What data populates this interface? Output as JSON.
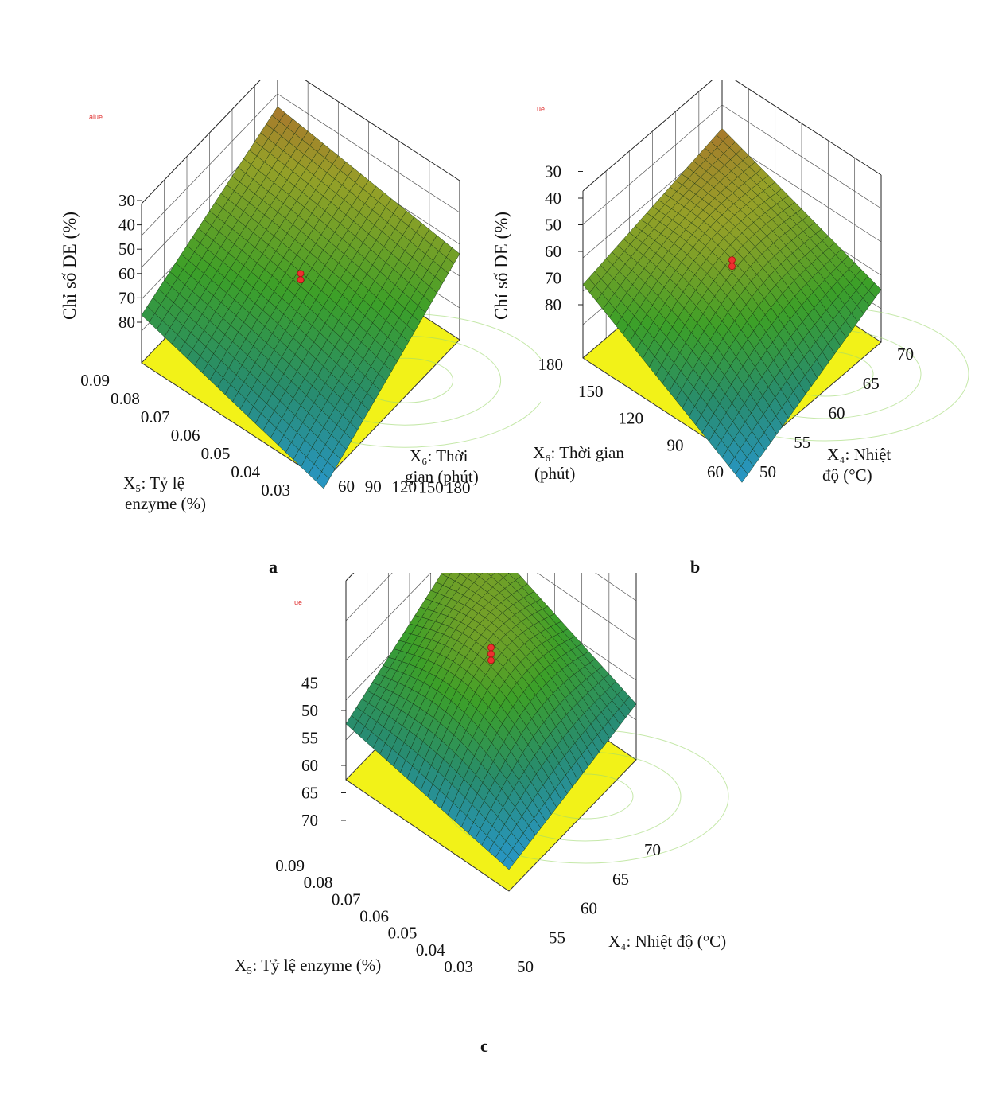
{
  "chart_data": [
    {
      "type": "surface",
      "panel_label": "a",
      "corner_text": "alue",
      "zlabel": "Chỉ số DE (%)",
      "zticks": [
        "80",
        "70",
        "60",
        "50",
        "40",
        "30"
      ],
      "xlabel_line1": "X₅: Tỷ lệ",
      "xlabel_line2": "enzyme (%)",
      "xticks": [
        "0.09",
        "0.08",
        "0.07",
        "0.06",
        "0.05",
        "0.04",
        "0.03"
      ],
      "ylabel_line1": "X₆: Thời",
      "ylabel_line2": "gian (phút)",
      "yticks": [
        "180",
        "150",
        "120",
        "90",
        "60"
      ],
      "surface_corners": {
        "front": 27,
        "left": 50,
        "back": 78,
        "right": 66
      },
      "design_points_z": [
        64,
        65
      ]
    },
    {
      "type": "surface",
      "panel_label": "b",
      "corner_text": "ue",
      "zlabel": "Chỉ số DE (%)",
      "zticks": [
        "80",
        "70",
        "60",
        "50",
        "40",
        "30"
      ],
      "xlabel_line1": "X₆: Thời gian",
      "xlabel_line2": "(phút)",
      "xticks": [
        "180",
        "150",
        "120",
        "90",
        "60"
      ],
      "ylabel_line1": "X₄: Nhiệt",
      "ylabel_line2": "độ (°C)",
      "yticks": [
        "70",
        "65",
        "60",
        "55",
        "50"
      ],
      "surface_corners": {
        "front": 22,
        "left": 58,
        "back": 72,
        "right": 50
      },
      "design_points_z": [
        64,
        65
      ]
    },
    {
      "type": "surface",
      "panel_label": "c",
      "corner_text": "ue",
      "zlabel": "",
      "zticks": [
        "70",
        "65",
        "60",
        "55",
        "50",
        "45"
      ],
      "xlabel_line1": "X₅: Tỷ lệ enzyme (%)",
      "xlabel_line2": "",
      "xticks": [
        "0.09",
        "0.08",
        "0.07",
        "0.06",
        "0.05",
        "0.04",
        "0.03"
      ],
      "ylabel_line1": "X₄: Nhiệt độ (°C)",
      "ylabel_line2": "",
      "yticks": [
        "70",
        "65",
        "60",
        "55",
        "50"
      ],
      "surface_corners": {
        "front": 45,
        "left": 53,
        "back": 69,
        "right": 53
      },
      "design_points_z": [
        64,
        65,
        66
      ]
    }
  ]
}
